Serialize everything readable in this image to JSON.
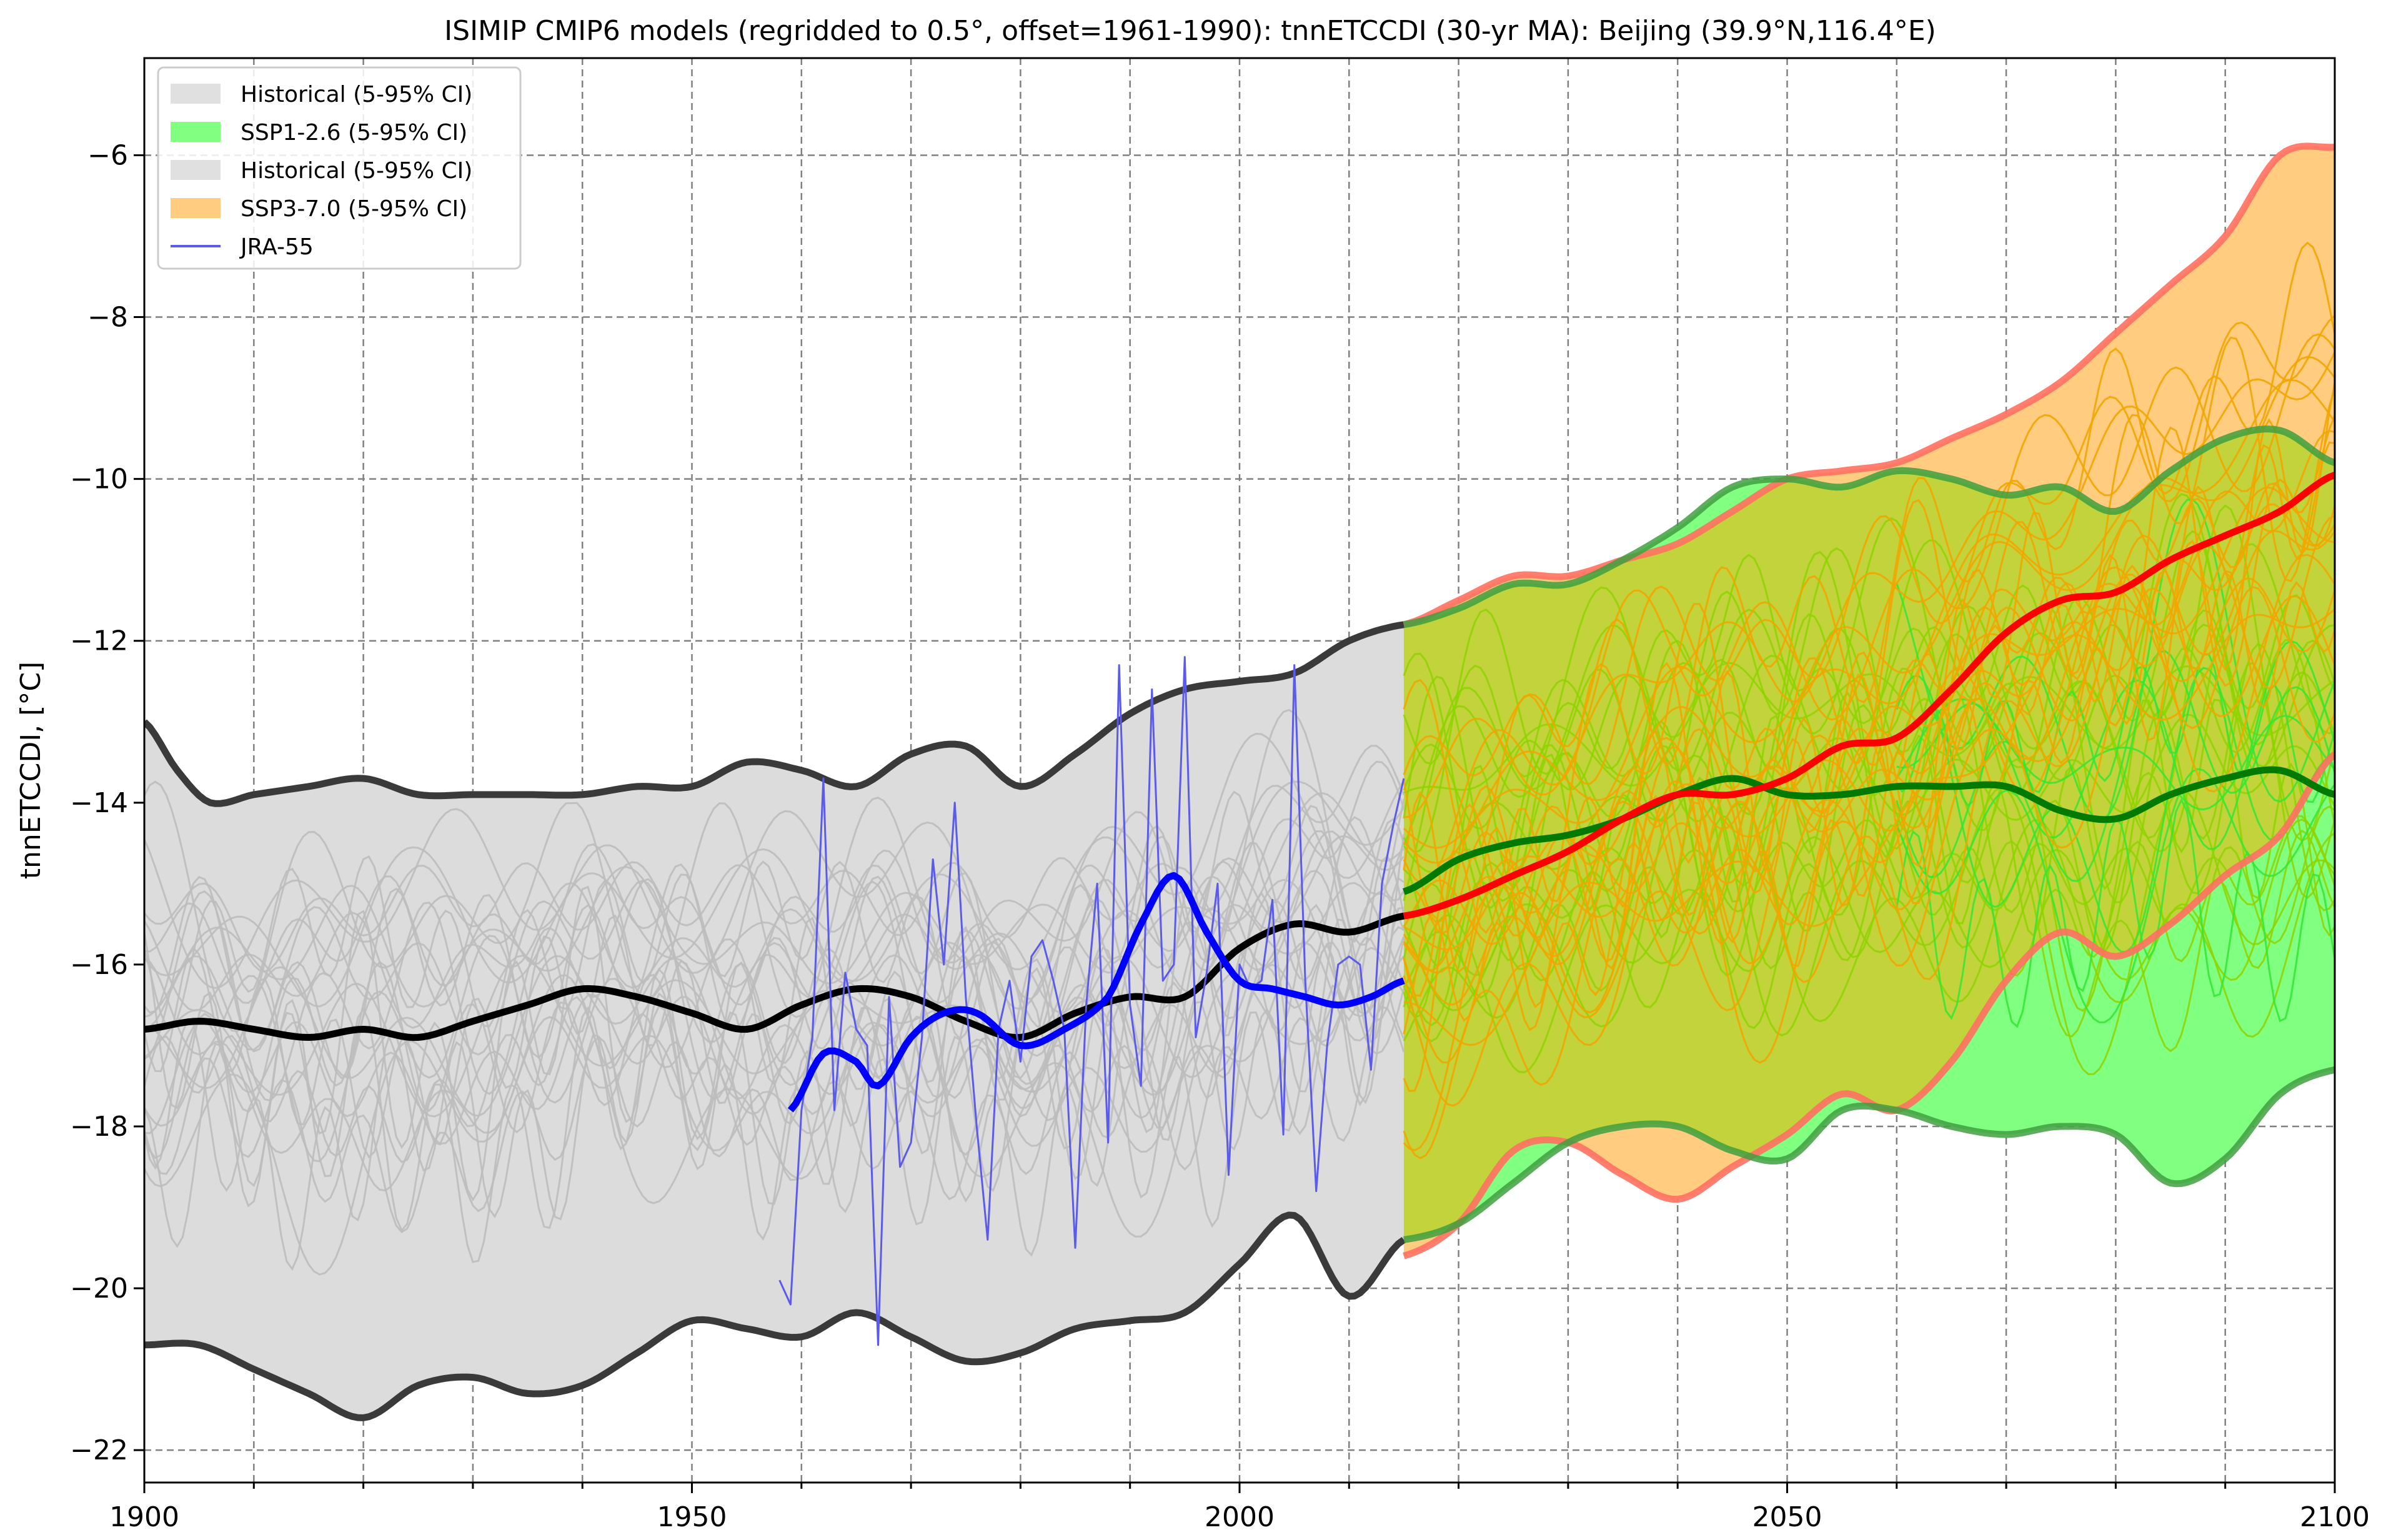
{
  "chart_data": {
    "type": "line",
    "title": "ISIMIP CMIP6 models (regridded to 0.5°, offset=1961-1990): tnnETCCDI (30-yr MA): Beijing (39.9°N,116.4°E)",
    "xlabel": "",
    "ylabel": "tnnETCCDI, [°C]",
    "xlim": [
      1900,
      2100
    ],
    "ylim": [
      -22.4,
      -4.8
    ],
    "grid": true,
    "legend_position": "top-left",
    "x_major_ticks": [
      1900,
      1950,
      2000,
      2050,
      2100
    ],
    "x_major_tick_labels": [
      "1900",
      "1950",
      "2000",
      "2050",
      "2100"
    ],
    "x_grid": [
      1900,
      1910,
      1920,
      1930,
      1940,
      1950,
      1960,
      1970,
      1980,
      1990,
      2000,
      2010,
      2020,
      2030,
      2040,
      2050,
      2060,
      2070,
      2080,
      2090,
      2100
    ],
    "y_ticks": [
      -22,
      -20,
      -18,
      -16,
      -14,
      -12,
      -10,
      -8,
      -6
    ],
    "y_tick_labels": [
      "−22",
      "−20",
      "−18",
      "−16",
      "−14",
      "−12",
      "−10",
      "−8",
      "−6"
    ],
    "legend": [
      {
        "label": "Historical (5-95% CI)",
        "kind": "patch",
        "color": "#e0e0e0"
      },
      {
        "label": "SSP1-2.6 (5-95% CI)",
        "kind": "patch",
        "color": "#80ff80"
      },
      {
        "label": "Historical (5-95% CI)",
        "kind": "patch",
        "color": "#e0e0e0"
      },
      {
        "label": "SSP3-7.0 (5-95% CI)",
        "kind": "patch",
        "color": "#ffcc80"
      },
      {
        "label": "JRA-55",
        "kind": "line",
        "color": "#5a5aee"
      }
    ],
    "colors": {
      "hist_fill": "#dcdcdc",
      "hist_member": "#bdbdbd",
      "hist_bound": "#3a3a3a",
      "hist_mean": "#000000",
      "ssp126_fill": "#80ff80",
      "ssp126_member": "#33e633",
      "ssp126_bound": "#3f9f3f",
      "ssp126_mean": "#007a00",
      "ssp370_fill": "#ffcc80",
      "ssp370_member": "#f2a600",
      "ssp370_bound": "#ff7060",
      "ssp370_mean": "#ff0000",
      "overlap_fill": "#c2d33c",
      "overlap_member": "#8ed400",
      "reanalysis": "#5a5aee",
      "reanalysis_ma": "#0000ff"
    },
    "series": [
      {
        "name": "Historical upper (95%)",
        "x": [
          1900,
          1903,
          1906,
          1910,
          1915,
          1920,
          1925,
          1930,
          1935,
          1940,
          1945,
          1950,
          1955,
          1960,
          1965,
          1970,
          1975,
          1980,
          1985,
          1990,
          1995,
          2000,
          2005,
          2010,
          2015
        ],
        "y": [
          -13.0,
          -13.6,
          -14.0,
          -13.9,
          -13.8,
          -13.7,
          -13.9,
          -13.9,
          -13.9,
          -13.9,
          -13.8,
          -13.8,
          -13.5,
          -13.6,
          -13.8,
          -13.4,
          -13.3,
          -13.8,
          -13.4,
          -12.9,
          -12.6,
          -12.5,
          -12.4,
          -12.0,
          -11.8
        ]
      },
      {
        "name": "Historical lower (5%)",
        "x": [
          1900,
          1905,
          1910,
          1915,
          1920,
          1925,
          1930,
          1935,
          1940,
          1945,
          1950,
          1955,
          1960,
          1965,
          1970,
          1975,
          1980,
          1985,
          1990,
          1995,
          2000,
          2005,
          2010,
          2015
        ],
        "y": [
          -20.7,
          -20.7,
          -21.0,
          -21.3,
          -21.6,
          -21.2,
          -21.1,
          -21.3,
          -21.2,
          -20.8,
          -20.4,
          -20.5,
          -20.6,
          -20.3,
          -20.6,
          -20.9,
          -20.8,
          -20.5,
          -20.4,
          -20.3,
          -19.7,
          -19.1,
          -20.1,
          -19.4
        ]
      },
      {
        "name": "Historical multi-model mean",
        "x": [
          1900,
          1905,
          1910,
          1915,
          1920,
          1925,
          1930,
          1935,
          1940,
          1945,
          1950,
          1955,
          1960,
          1965,
          1970,
          1975,
          1980,
          1985,
          1990,
          1995,
          2000,
          2005,
          2010,
          2015
        ],
        "y": [
          -16.8,
          -16.7,
          -16.8,
          -16.9,
          -16.8,
          -16.9,
          -16.7,
          -16.5,
          -16.3,
          -16.4,
          -16.6,
          -16.8,
          -16.5,
          -16.3,
          -16.4,
          -16.7,
          -16.9,
          -16.6,
          -16.4,
          -16.4,
          -15.8,
          -15.5,
          -15.6,
          -15.4
        ]
      },
      {
        "name": "SSP1-2.6 upper (95%)",
        "x": [
          2015,
          2020,
          2025,
          2030,
          2035,
          2040,
          2045,
          2050,
          2055,
          2060,
          2065,
          2070,
          2075,
          2080,
          2085,
          2090,
          2095,
          2100
        ],
        "y": [
          -11.8,
          -11.6,
          -11.3,
          -11.3,
          -11.0,
          -10.6,
          -10.1,
          -10.0,
          -10.1,
          -9.9,
          -10.0,
          -10.2,
          -10.1,
          -10.4,
          -9.9,
          -9.5,
          -9.4,
          -9.8
        ]
      },
      {
        "name": "SSP1-2.6 lower (5%)",
        "x": [
          2015,
          2020,
          2025,
          2030,
          2035,
          2040,
          2045,
          2050,
          2055,
          2060,
          2065,
          2070,
          2075,
          2080,
          2085,
          2090,
          2095,
          2100
        ],
        "y": [
          -19.4,
          -19.2,
          -18.7,
          -18.2,
          -18.0,
          -18.0,
          -18.3,
          -18.4,
          -17.8,
          -17.8,
          -18.0,
          -18.1,
          -18.0,
          -18.1,
          -18.7,
          -18.4,
          -17.6,
          -17.3
        ]
      },
      {
        "name": "SSP1-2.6 multi-model mean",
        "x": [
          2015,
          2020,
          2025,
          2030,
          2035,
          2040,
          2045,
          2050,
          2055,
          2060,
          2065,
          2070,
          2075,
          2080,
          2085,
          2090,
          2095,
          2100
        ],
        "y": [
          -15.1,
          -14.7,
          -14.5,
          -14.4,
          -14.2,
          -13.9,
          -13.7,
          -13.9,
          -13.9,
          -13.8,
          -13.8,
          -13.8,
          -14.1,
          -14.2,
          -13.9,
          -13.7,
          -13.6,
          -13.9
        ]
      },
      {
        "name": "SSP3-7.0 upper (95%)",
        "x": [
          2015,
          2020,
          2025,
          2030,
          2035,
          2040,
          2045,
          2050,
          2055,
          2060,
          2065,
          2070,
          2075,
          2080,
          2085,
          2090,
          2095,
          2100
        ],
        "y": [
          -11.8,
          -11.5,
          -11.2,
          -11.2,
          -11.0,
          -10.8,
          -10.4,
          -10.0,
          -9.9,
          -9.8,
          -9.5,
          -9.2,
          -8.8,
          -8.2,
          -7.6,
          -7.0,
          -6.0,
          -5.9
        ]
      },
      {
        "name": "SSP3-7.0 lower (5%)",
        "x": [
          2015,
          2020,
          2025,
          2030,
          2035,
          2040,
          2045,
          2050,
          2055,
          2060,
          2065,
          2070,
          2075,
          2080,
          2085,
          2090,
          2095,
          2100
        ],
        "y": [
          -19.6,
          -19.2,
          -18.3,
          -18.2,
          -18.6,
          -18.9,
          -18.5,
          -18.1,
          -17.6,
          -17.8,
          -17.2,
          -16.2,
          -15.6,
          -15.9,
          -15.5,
          -14.9,
          -14.4,
          -13.4
        ]
      },
      {
        "name": "SSP3-7.0 multi-model mean",
        "x": [
          2015,
          2020,
          2025,
          2030,
          2035,
          2040,
          2045,
          2050,
          2055,
          2060,
          2065,
          2070,
          2075,
          2080,
          2085,
          2090,
          2095,
          2100
        ],
        "y": [
          -15.4,
          -15.2,
          -14.9,
          -14.6,
          -14.2,
          -13.9,
          -13.9,
          -13.7,
          -13.3,
          -13.2,
          -12.6,
          -11.9,
          -11.5,
          -11.4,
          -11.0,
          -10.7,
          -10.4,
          -9.95
        ]
      },
      {
        "name": "JRA-55",
        "x": [
          1958,
          1959,
          1960,
          1961,
          1962,
          1963,
          1964,
          1965,
          1966,
          1967,
          1968,
          1969,
          1970,
          1971,
          1972,
          1973,
          1974,
          1975,
          1976,
          1977,
          1978,
          1979,
          1980,
          1981,
          1982,
          1983,
          1984,
          1985,
          1986,
          1987,
          1988,
          1989,
          1990,
          1991,
          1992,
          1993,
          1994,
          1995,
          1996,
          1997,
          1998,
          1999,
          2000,
          2001,
          2002,
          2003,
          2004,
          2005,
          2006,
          2007,
          2008,
          2009,
          2010,
          2011,
          2012,
          2013,
          2014,
          2015
        ],
        "y": [
          -19.9,
          -20.2,
          -17.8,
          -16.9,
          -13.7,
          -17.8,
          -16.1,
          -16.8,
          -17.0,
          -20.7,
          -16.4,
          -18.5,
          -18.2,
          -16.9,
          -14.7,
          -16.0,
          -14.0,
          -16.4,
          -18.0,
          -19.4,
          -16.8,
          -16.2,
          -17.2,
          -15.9,
          -15.7,
          -16.2,
          -16.8,
          -19.5,
          -16.5,
          -15.0,
          -18.2,
          -12.3,
          -16.5,
          -17.5,
          -12.6,
          -16.2,
          -16.0,
          -12.2,
          -16.9,
          -16.1,
          -15.0,
          -18.6,
          -16.0,
          -16.3,
          -16.2,
          -15.2,
          -18.1,
          -12.3,
          -16.2,
          -18.8,
          -17.0,
          -16.0,
          -15.9,
          -16.0,
          -17.3,
          -15.0,
          -14.3,
          -13.7
        ]
      },
      {
        "name": "JRA-55 (30-yr MA)",
        "x": [
          1959,
          1962,
          1965,
          1967,
          1970,
          1973,
          1976,
          1980,
          1984,
          1988,
          1991,
          1994,
          1997,
          2000,
          2003,
          2006,
          2009,
          2012,
          2015
        ],
        "y": [
          -17.8,
          -17.1,
          -17.2,
          -17.5,
          -16.9,
          -16.6,
          -16.6,
          -17.0,
          -16.8,
          -16.4,
          -15.5,
          -14.9,
          -15.6,
          -16.2,
          -16.3,
          -16.4,
          -16.5,
          -16.4,
          -16.2
        ]
      }
    ]
  }
}
